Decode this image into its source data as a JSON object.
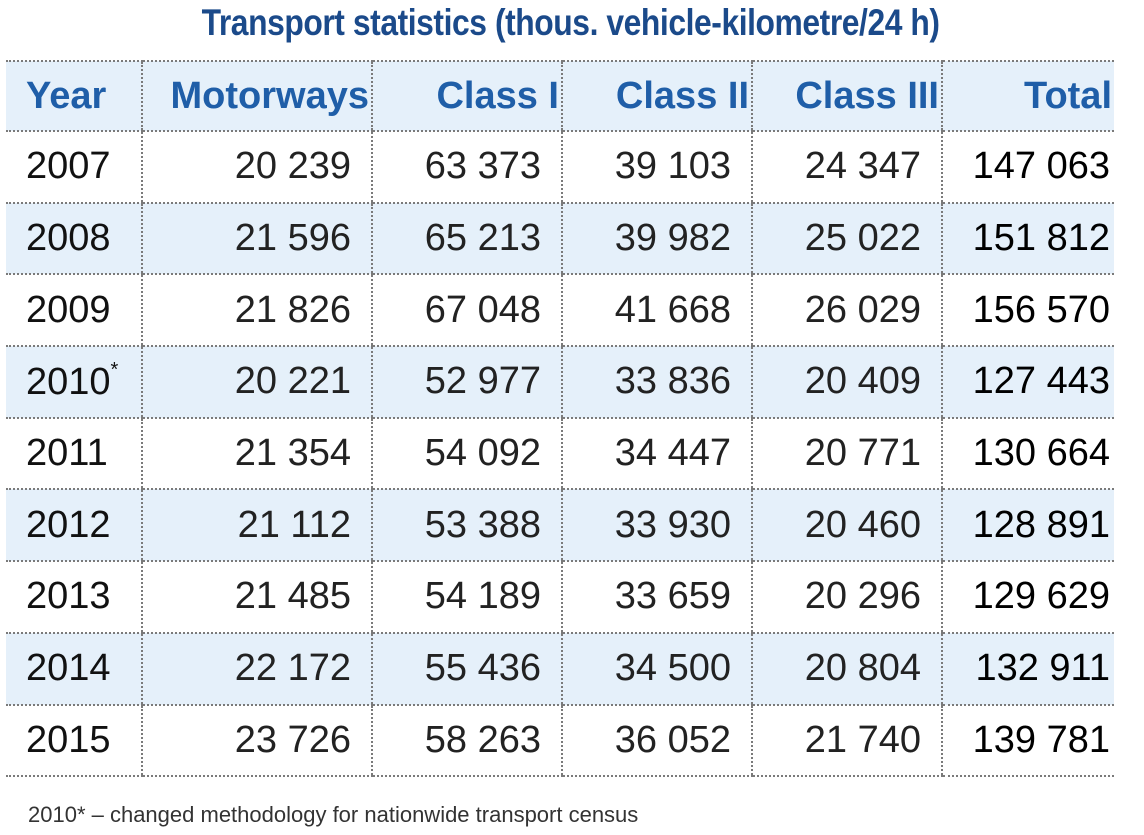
{
  "title": "Transport statistics (thous. vehicle-kilometre/24 h)",
  "table": {
    "headers": [
      "Year",
      "Motorways",
      "Class I",
      "Class II",
      "Class III",
      "Total"
    ],
    "rows": [
      {
        "year": "2007",
        "mark": "",
        "motorways": "20 239",
        "class1": "63 373",
        "class2": "39 103",
        "class3": "24 347",
        "total": "147 063"
      },
      {
        "year": "2008",
        "mark": "",
        "motorways": "21 596",
        "class1": "65 213",
        "class2": "39 982",
        "class3": "25 022",
        "total": "151 812"
      },
      {
        "year": "2009",
        "mark": "",
        "motorways": "21 826",
        "class1": "67 048",
        "class2": "41 668",
        "class3": "26 029",
        "total": "156 570"
      },
      {
        "year": "2010",
        "mark": "*",
        "motorways": "20 221",
        "class1": "52 977",
        "class2": "33 836",
        "class3": "20 409",
        "total": "127 443"
      },
      {
        "year": "2011",
        "mark": "",
        "motorways": "21 354",
        "class1": "54 092",
        "class2": "34 447",
        "class3": "20 771",
        "total": "130 664"
      },
      {
        "year": "2012",
        "mark": "",
        "motorways": "21 112",
        "class1": "53 388",
        "class2": "33 930",
        "class3": "20 460",
        "total": "128 891"
      },
      {
        "year": "2013",
        "mark": "",
        "motorways": "21 485",
        "class1": "54 189",
        "class2": "33 659",
        "class3": "20 296",
        "total": "129 629"
      },
      {
        "year": "2014",
        "mark": "",
        "motorways": "22 172",
        "class1": "55 436",
        "class2": "34 500",
        "class3": "20 804",
        "total": "132 911"
      },
      {
        "year": "2015",
        "mark": "",
        "motorways": "23 726",
        "class1": "58 263",
        "class2": "36 052",
        "class3": "21 740",
        "total": "139 781"
      }
    ]
  },
  "footnote": "2010* – changed methodology for nationwide transport census",
  "colors": {
    "heading": "#1f5ea8",
    "title": "#1b4a8a",
    "band": "#e5f0fa"
  }
}
